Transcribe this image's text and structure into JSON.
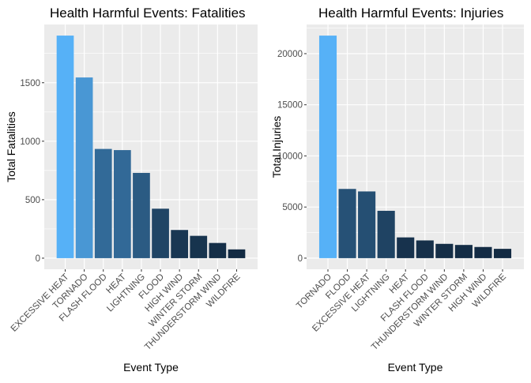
{
  "chart_data": [
    {
      "type": "bar",
      "title": "Health Harmful Events: Fatalities",
      "xlabel": "Event Type",
      "ylabel": "Total Fatalities",
      "categories": [
        "EXCESSIVE HEAT",
        "TORNADO",
        "FLASH FLOOD",
        "HEAT",
        "LIGHTNING",
        "FLOOD",
        "HIGH WIND",
        "WINTER STORM",
        "THUNDERSTORM WIND",
        "WILDFIRE"
      ],
      "values": [
        1903,
        1545,
        934,
        924,
        729,
        423,
        241,
        191,
        130,
        75
      ],
      "yticks": [
        0,
        500,
        1000,
        1500
      ],
      "ytick_labels": [
        "0",
        "500",
        "1000",
        "1500"
      ],
      "ylim": [
        -95,
        1998
      ],
      "fill_scale": [
        "#132B43",
        "#56B1F7"
      ],
      "grid": true,
      "legend": "none"
    },
    {
      "type": "bar",
      "title": "Health Harmful Events: Injuries",
      "xlabel": "Event Type",
      "ylabel": "Total Injuries",
      "categories": [
        "TORNADO",
        "FLOOD",
        "EXCESSIVE HEAT",
        "LIGHTNING",
        "HEAT",
        "FLASH FLOOD",
        "THUNDERSTORM WIND",
        "WINTER STORM",
        "HIGH WIND",
        "WILDFIRE"
      ],
      "values": [
        21765,
        6770,
        6525,
        4631,
        2030,
        1734,
        1400,
        1292,
        1093,
        911
      ],
      "yticks": [
        0,
        5000,
        10000,
        15000,
        20000
      ],
      "ytick_labels": [
        "0",
        "5000",
        "10000",
        "15000",
        "20000"
      ],
      "ylim": [
        -1088,
        22853
      ],
      "fill_scale": [
        "#132B43",
        "#56B1F7"
      ],
      "grid": true,
      "legend": "none"
    }
  ]
}
